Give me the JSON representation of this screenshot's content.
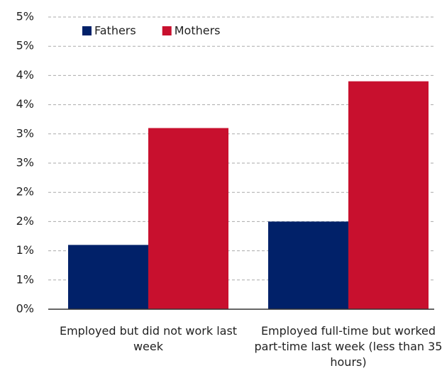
{
  "chart_data": {
    "type": "bar",
    "categories": [
      "Employed but did not work last week",
      "Employed full-time but worked part-time last week (less than 35 hours)"
    ],
    "series": [
      {
        "name": "Fathers",
        "color": "#012169",
        "values": [
          1.1,
          1.5
        ]
      },
      {
        "name": "Mothers",
        "color": "#c8102e",
        "values": [
          3.1,
          3.9
        ]
      }
    ],
    "ylim": [
      0,
      5
    ],
    "yticks": [
      {
        "value": 0,
        "label": "0%"
      },
      {
        "value": 0.5,
        "label": "1%"
      },
      {
        "value": 1,
        "label": "1%"
      },
      {
        "value": 1.5,
        "label": "2%"
      },
      {
        "value": 2,
        "label": "2%"
      },
      {
        "value": 2.5,
        "label": "3%"
      },
      {
        "value": 3,
        "label": "3%"
      },
      {
        "value": 3.5,
        "label": "4%"
      },
      {
        "value": 4,
        "label": "4%"
      },
      {
        "value": 4.5,
        "label": "5%"
      },
      {
        "value": 5,
        "label": "5%"
      }
    ],
    "grid": true,
    "legend": "top-left"
  }
}
